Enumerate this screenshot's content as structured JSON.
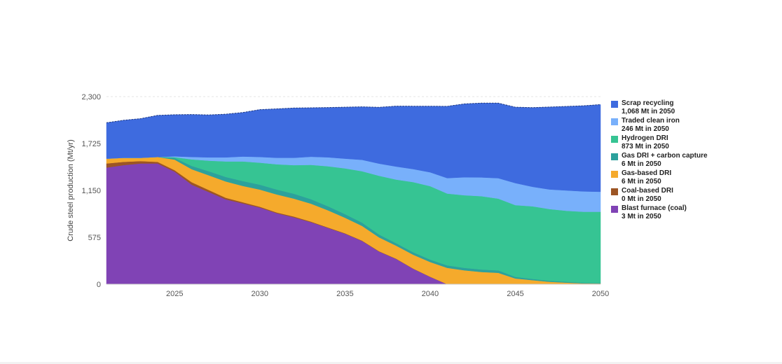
{
  "chart_data": {
    "type": "area",
    "stacked": true,
    "ylabel": "Crude steel production (Mt/yr)",
    "xlabel": "",
    "xlim": [
      2021,
      2050
    ],
    "ylim": [
      0,
      2300
    ],
    "yticks": [
      0,
      575,
      1150,
      1725,
      2300
    ],
    "ytick_labels": [
      "0",
      "575",
      "1,150",
      "1,725",
      "2,300"
    ],
    "xticks": [
      2025,
      2030,
      2035,
      2040,
      2045,
      2050
    ],
    "xtick_labels": [
      "2025",
      "2030",
      "2035",
      "2040",
      "2045",
      "2050"
    ],
    "grid": "horizontal dashed",
    "legend_position": "right",
    "x": [
      2021,
      2022,
      2023,
      2024,
      2025,
      2026,
      2027,
      2028,
      2029,
      2030,
      2031,
      2032,
      2033,
      2034,
      2035,
      2036,
      2037,
      2038,
      2039,
      2040,
      2041,
      2042,
      2043,
      2044,
      2045,
      2046,
      2047,
      2048,
      2049,
      2050
    ],
    "series": [
      {
        "name": "Blast furnace (coal)",
        "color": "#8043b5",
        "values": [
          1430,
          1460,
          1480,
          1480,
          1380,
          1220,
          1130,
          1040,
          990,
          940,
          870,
          820,
          760,
          690,
          620,
          530,
          400,
          310,
          190,
          90,
          0,
          0,
          0,
          0,
          0,
          0,
          0,
          0,
          0,
          3
        ]
      },
      {
        "name": "Coal-based DRI",
        "color": "#9c5524",
        "values": [
          50,
          40,
          30,
          20,
          18,
          30,
          25,
          20,
          15,
          10,
          10,
          10,
          8,
          6,
          5,
          5,
          4,
          3,
          2,
          2,
          1,
          1,
          0,
          0,
          0,
          0,
          0,
          0,
          0,
          0
        ]
      },
      {
        "name": "Gas-based DRI",
        "color": "#f5aa2c",
        "values": [
          60,
          50,
          40,
          60,
          130,
          160,
          180,
          200,
          200,
          210,
          220,
          220,
          220,
          210,
          190,
          180,
          170,
          160,
          170,
          180,
          200,
          170,
          150,
          140,
          70,
          50,
          30,
          20,
          10,
          6
        ]
      },
      {
        "name": "Gas DRI + carbon capture",
        "color": "#2ca19c",
        "values": [
          0,
          0,
          0,
          0,
          20,
          40,
          50,
          55,
          60,
          60,
          60,
          60,
          55,
          50,
          45,
          40,
          35,
          30,
          30,
          30,
          30,
          30,
          30,
          30,
          20,
          15,
          12,
          10,
          8,
          6
        ]
      },
      {
        "name": "Hydrogen DRI",
        "color": "#36c493",
        "values": [
          0,
          0,
          0,
          0,
          10,
          80,
          130,
          190,
          240,
          270,
          310,
          350,
          420,
          490,
          560,
          630,
          720,
          780,
          860,
          900,
          880,
          890,
          900,
          880,
          880,
          890,
          880,
          870,
          870,
          873
        ]
      },
      {
        "name": "Traded clean iron",
        "color": "#78b0fb",
        "values": [
          0,
          0,
          0,
          0,
          10,
          30,
          40,
          50,
          60,
          70,
          80,
          90,
          100,
          110,
          120,
          140,
          150,
          160,
          160,
          170,
          190,
          220,
          230,
          250,
          270,
          240,
          240,
          250,
          250,
          246
        ]
      },
      {
        "name": "Scrap recycling",
        "color": "#3e6bdf",
        "values": [
          440,
          460,
          480,
          510,
          510,
          520,
          520,
          530,
          540,
          580,
          600,
          610,
          600,
          610,
          630,
          650,
          690,
          740,
          770,
          810,
          880,
          900,
          910,
          920,
          930,
          970,
          1010,
          1030,
          1050,
          1068
        ]
      }
    ]
  },
  "legend": [
    {
      "name": "Scrap recycling",
      "value": "1,068 Mt in 2050",
      "color": "#3e6bdf"
    },
    {
      "name": "Traded clean iron",
      "value": "246 Mt in 2050",
      "color": "#78b0fb"
    },
    {
      "name": "Hydrogen DRI",
      "value": "873 Mt in 2050",
      "color": "#36c493"
    },
    {
      "name": "Gas DRI + carbon capture",
      "value": "6 Mt in 2050",
      "color": "#2ca19c"
    },
    {
      "name": "Gas-based DRI",
      "value": "6 Mt in 2050",
      "color": "#f5aa2c"
    },
    {
      "name": "Coal-based DRI",
      "value": "0 Mt in 2050",
      "color": "#9c5524"
    },
    {
      "name": "Blast furnace (coal)",
      "value": "3 Mt in 2050",
      "color": "#8043b5"
    }
  ]
}
